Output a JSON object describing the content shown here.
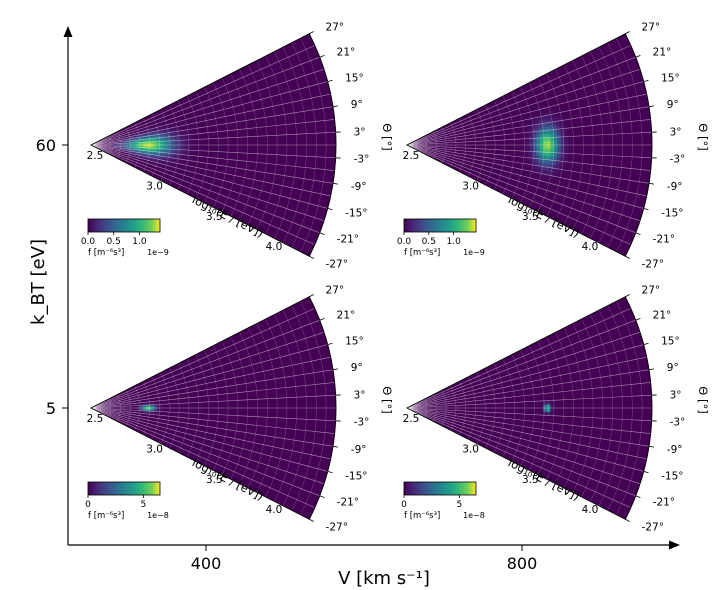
{
  "chart_data": {
    "type": "heatmap",
    "layout": "2x2 grid of polar (fan) heatmaps",
    "figure_axes": {
      "x_label": "V [km s⁻¹]",
      "x_ticks": [
        "400",
        "800"
      ],
      "y_label": "k_BT [eV]",
      "y_ticks": [
        "60",
        "5"
      ]
    },
    "panel_axes": {
      "radial_label": "log₁₀(E / [eV])",
      "radial_ticks": [
        "2.5",
        "3.0",
        "3.5",
        "4.0"
      ],
      "radial_range": [
        2.5,
        4.33
      ],
      "angle_label": "Θ [°]",
      "angle_ticks": [
        "27°",
        "21°",
        "15°",
        "9°",
        "3°",
        "-3°",
        "-9°",
        "-15°",
        "-21°",
        "-27°"
      ],
      "angle_range": [
        -27,
        27
      ],
      "colormap": "viridis",
      "colorbar_label": "f [m⁻⁶s³]"
    },
    "panels": [
      {
        "id": "v400-t60",
        "V": 400,
        "kT": 60,
        "peak_log10E": 2.93,
        "peak_theta": 0,
        "sigma_log10E": 0.12,
        "sigma_theta": 6.0,
        "peak_f": 1.35e-09,
        "colorbar_ticks": [
          "0.0",
          "0.5",
          "1.0"
        ],
        "colorbar_exponent": "1e−9",
        "colorbar_max": 1.4
      },
      {
        "id": "v800-t60",
        "V": 800,
        "kT": 60,
        "peak_log10E": 3.55,
        "peak_theta": 0,
        "sigma_log10E": 0.06,
        "sigma_theta": 5.0,
        "peak_f": 1.35e-09,
        "colorbar_ticks": [
          "0.0",
          "0.5",
          "1.0"
        ],
        "colorbar_exponent": "1e−9",
        "colorbar_max": 1.45
      },
      {
        "id": "v400-t5",
        "V": 400,
        "kT": 5,
        "peak_log10E": 2.93,
        "peak_theta": 0,
        "sigma_log10E": 0.035,
        "sigma_theta": 2.0,
        "peak_f": 6e-08,
        "colorbar_ticks": [
          "0",
          "5"
        ],
        "colorbar_exponent": "1e−8",
        "colorbar_max": 6.5
      },
      {
        "id": "v800-t5",
        "V": 800,
        "kT": 5,
        "peak_log10E": 3.55,
        "peak_theta": 0,
        "sigma_log10E": 0.015,
        "sigma_theta": 1.1,
        "peak_f": 6e-08,
        "colorbar_ticks": [
          "0",
          "5"
        ],
        "colorbar_exponent": "1e−8",
        "colorbar_max": 6.5
      }
    ]
  }
}
